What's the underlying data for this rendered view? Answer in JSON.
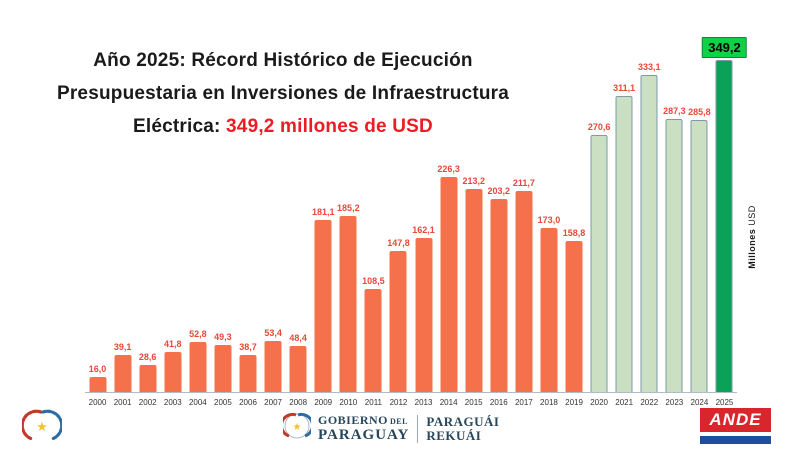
{
  "title": {
    "line1": "Año 2025: Récord Histórico de Ejecución",
    "line2": "Presupuestaria en Inversiones de Infraestructura",
    "line3_black": "Eléctrica:",
    "line3_red": "349,2 millones de USD"
  },
  "chart_data": {
    "type": "bar",
    "title": "Año 2025: Récord Histórico de Ejecución Presupuestaria en Inversiones de Infraestructura Eléctrica: 349,2 millones de USD",
    "categories": [
      "2000",
      "2001",
      "2002",
      "2003",
      "2004",
      "2005",
      "2006",
      "2007",
      "2008",
      "2009",
      "2010",
      "2011",
      "2012",
      "2013",
      "2014",
      "2015",
      "2016",
      "2017",
      "2018",
      "2019",
      "2020",
      "2021",
      "2022",
      "2023",
      "2024",
      "2025"
    ],
    "values": [
      16.0,
      39.1,
      28.6,
      41.8,
      52.8,
      49.3,
      38.7,
      53.4,
      48.4,
      181.1,
      185.2,
      108.5,
      147.8,
      162.1,
      226.3,
      213.2,
      203.2,
      211.7,
      173.0,
      158.8,
      270.6,
      311.1,
      333.1,
      287.3,
      285.8,
      349.2
    ],
    "bar_styles": [
      "orange",
      "orange",
      "orange",
      "orange",
      "orange",
      "orange",
      "orange",
      "orange",
      "orange",
      "orange",
      "orange",
      "orange",
      "orange",
      "orange",
      "orange",
      "orange",
      "orange",
      "orange",
      "orange",
      "orange",
      "lightgreen",
      "lightgreen",
      "lightgreen",
      "lightgreen",
      "lightgreen",
      "record"
    ],
    "xlabel": "",
    "ylabel_bold": "Millones",
    "ylabel_regular": "USD",
    "ylim": [
      0,
      360
    ],
    "grid": false,
    "legend": "none",
    "colors": {
      "bar_orange": "#f4714b",
      "bar_light_green": "#cbe0c3",
      "bar_record_green": "#0aa158",
      "bar_border": "#7e99a8",
      "value_label": "#e8473b",
      "record_label_bg": "#0ed145",
      "title_red": "#ec1c24"
    }
  },
  "footer": {
    "gov": {
      "line1a": "GOBIERNO",
      "line1b": "DEL",
      "line2": "PARAGUAY",
      "right1": "PARAGUÁI",
      "right2": "REKUÁI"
    },
    "ande": "ANDE"
  }
}
